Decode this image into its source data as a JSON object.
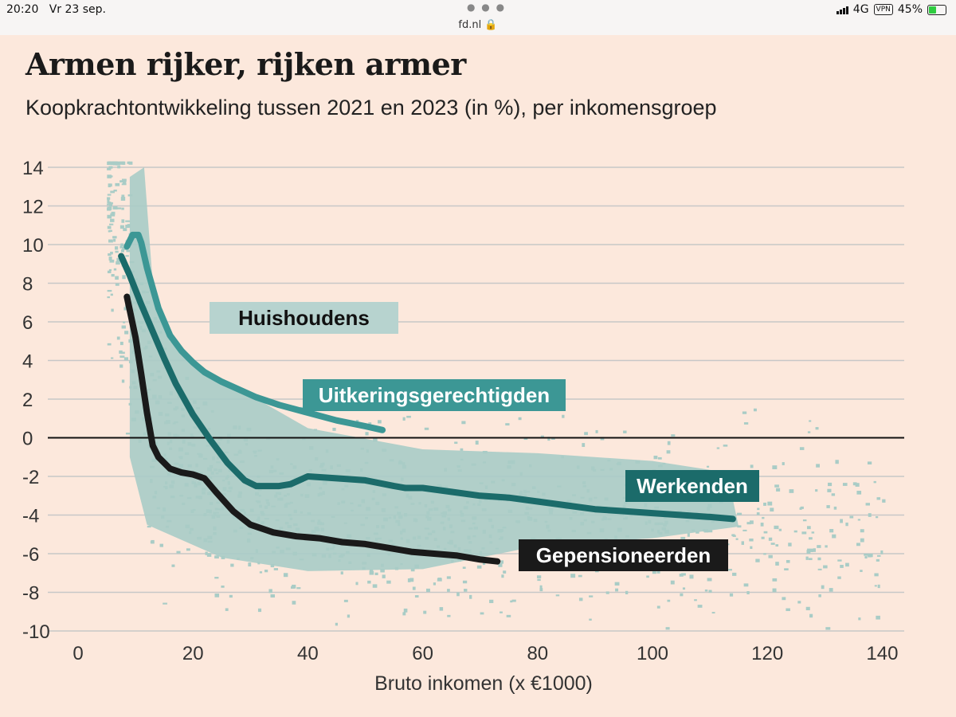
{
  "statusbar": {
    "time": "20:20",
    "date": "Vr 23 sep.",
    "url": "fd.nl",
    "network": "4G",
    "vpn": "VPN",
    "battery": "45%"
  },
  "colors": {
    "background": "#fce8dc",
    "scatter": "#a9ccc6",
    "huishoudens_label_bg": "#b7d3cf",
    "uitkeringsgerechtigden": "#3c9795",
    "werkenden": "#1b6b6a",
    "gepensioneerden": "#1a1a1a",
    "grid": "#c7c7c7"
  },
  "chart_data": {
    "type": "line",
    "title": "Armen rijker, rijken armer",
    "subtitle": "Koopkrachtontwikkeling tussen 2021 en 2023 (in %), per inkomensgroep",
    "xlabel": "Bruto inkomen (x €1000)",
    "ylabel": "",
    "xlim": [
      0,
      140
    ],
    "ylim": [
      -10,
      14
    ],
    "xticks": [
      0,
      20,
      40,
      60,
      80,
      100,
      120,
      140
    ],
    "yticks": [
      14,
      12,
      10,
      8,
      6,
      4,
      2,
      0,
      -2,
      -4,
      -6,
      -8,
      -10
    ],
    "grid": true,
    "background_label": "Huishoudens",
    "series": [
      {
        "name": "Uitkeringsgerechtigden",
        "color": "#3c9795",
        "x": [
          8.5,
          9.5,
          10.5,
          11,
          12,
          14,
          16,
          18,
          20,
          22,
          25,
          28,
          31,
          35,
          40,
          45,
          50,
          53
        ],
        "y": [
          9.9,
          10.5,
          10.5,
          10.1,
          8.8,
          6.7,
          5.3,
          4.5,
          3.9,
          3.4,
          2.9,
          2.5,
          2.1,
          1.7,
          1.3,
          0.9,
          0.6,
          0.4
        ]
      },
      {
        "name": "Werkenden",
        "color": "#1b6b6a",
        "x": [
          7.5,
          9,
          11,
          13,
          15,
          17,
          20,
          23,
          26,
          29,
          31,
          33,
          35,
          37,
          40,
          45,
          50,
          55,
          57,
          60,
          65,
          70,
          75,
          80,
          85,
          90,
          95,
          100,
          105,
          110,
          114
        ],
        "y": [
          9.4,
          8.4,
          6.9,
          5.5,
          4.1,
          2.8,
          1.2,
          -0.1,
          -1.3,
          -2.2,
          -2.5,
          -2.5,
          -2.5,
          -2.4,
          -2.0,
          -2.1,
          -2.2,
          -2.5,
          -2.6,
          -2.6,
          -2.8,
          -3.0,
          -3.1,
          -3.3,
          -3.5,
          -3.7,
          -3.8,
          -3.9,
          -4.0,
          -4.1,
          -4.2
        ]
      },
      {
        "name": "Gepensioneerden",
        "color": "#1a1a1a",
        "x": [
          8.5,
          10,
          11,
          12,
          13,
          14,
          16,
          18,
          20,
          22,
          24,
          27,
          30,
          34,
          38,
          42,
          46,
          50,
          54,
          58,
          62,
          66,
          70,
          73
        ],
        "y": [
          7.3,
          5.2,
          3.3,
          1.3,
          -0.4,
          -1.0,
          -1.6,
          -1.8,
          -1.9,
          -2.1,
          -2.8,
          -3.8,
          -4.5,
          -4.9,
          -5.1,
          -5.2,
          -5.4,
          -5.5,
          -5.7,
          -5.9,
          -6.0,
          -6.1,
          -6.3,
          -6.4
        ]
      }
    ]
  }
}
